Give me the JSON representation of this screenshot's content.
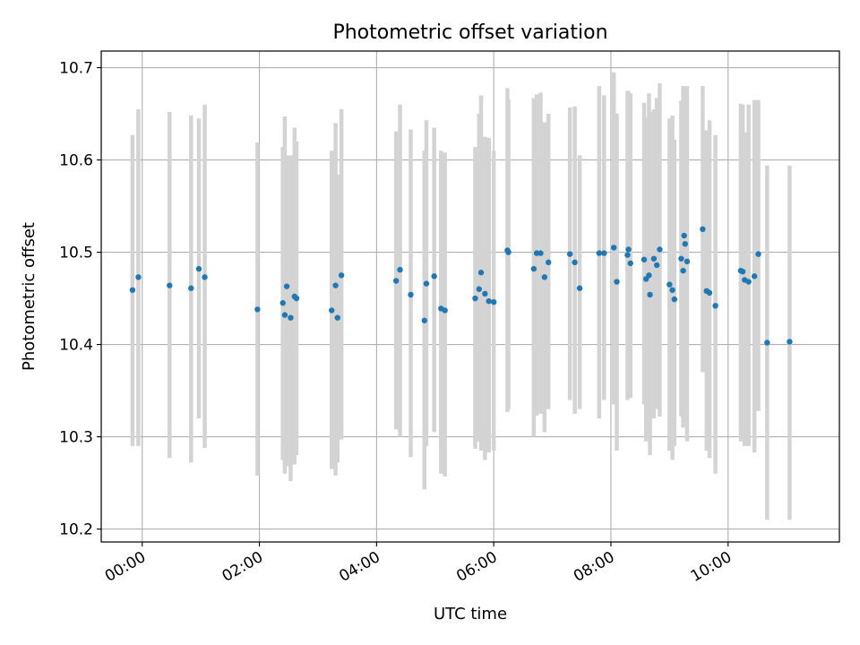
{
  "chart_data": {
    "type": "scatter",
    "title": "Photometric offset variation",
    "xlabel": "UTC time",
    "ylabel": "Photometric offset",
    "x_unit": "UTC time (HH:MM)",
    "xlim": [
      "-00:42",
      "11:54"
    ],
    "ylim": [
      10.186,
      10.718
    ],
    "xticks": [
      "00:00",
      "02:00",
      "04:00",
      "06:00",
      "08:00",
      "10:00"
    ],
    "yticks": [
      10.2,
      10.3,
      10.4,
      10.5,
      10.6,
      10.7
    ],
    "grid": true,
    "errorbar_color": "#d3d3d3",
    "point_color": "#1f77b4",
    "series": [
      {
        "x": [
          "-00:10",
          "-00:04",
          "00:28",
          "00:50",
          "00:58",
          "01:04",
          "01:58",
          "02:24",
          "02:26",
          "02:28",
          "02:32",
          "02:36",
          "02:38",
          "03:14",
          "03:18",
          "03:20",
          "03:24",
          "04:20",
          "04:24",
          "04:35",
          "04:49",
          "04:51",
          "04:59",
          "05:06",
          "05:10",
          "05:41",
          "05:45",
          "05:47",
          "05:51",
          "05:55",
          "06:00",
          "06:14",
          "06:15",
          "06:41",
          "06:44",
          "06:48",
          "06:52",
          "06:56",
          "07:18",
          "07:23",
          "07:28",
          "07:48",
          "07:53",
          "08:03",
          "08:06",
          "08:17",
          "08:18",
          "08:20",
          "08:34",
          "08:36",
          "08:39",
          "08:40",
          "08:44",
          "08:47",
          "08:50",
          "09:00",
          "09:03",
          "09:05",
          "09:12",
          "09:14",
          "09:15",
          "09:16",
          "09:18",
          "09:34",
          "09:38",
          "09:41",
          "09:47",
          "10:13",
          "10:15",
          "10:17",
          "10:21",
          "10:27",
          "10:31",
          "10:40",
          "11:03"
        ],
        "y": [
          10.459,
          10.473,
          10.464,
          10.461,
          10.482,
          10.473,
          10.438,
          10.445,
          10.432,
          10.463,
          10.429,
          10.452,
          10.45,
          10.437,
          10.464,
          10.429,
          10.475,
          10.469,
          10.481,
          10.454,
          10.426,
          10.466,
          10.474,
          10.439,
          10.437,
          10.45,
          10.46,
          10.478,
          10.455,
          10.447,
          10.446,
          10.502,
          10.5,
          10.482,
          10.499,
          10.499,
          10.473,
          10.489,
          10.498,
          10.489,
          10.461,
          10.499,
          10.499,
          10.505,
          10.468,
          10.497,
          10.503,
          10.488,
          10.492,
          10.471,
          10.475,
          10.454,
          10.493,
          10.486,
          10.503,
          10.465,
          10.459,
          10.449,
          10.493,
          10.48,
          10.518,
          10.509,
          10.49,
          10.525,
          10.458,
          10.456,
          10.442,
          10.48,
          10.479,
          10.47,
          10.468,
          10.474,
          10.498,
          10.402,
          10.403
        ],
        "yerr_low": [
          10.29,
          10.29,
          10.277,
          10.272,
          10.32,
          10.288,
          10.258,
          10.275,
          10.26,
          10.268,
          10.252,
          10.27,
          10.28,
          10.265,
          10.258,
          10.272,
          10.297,
          10.308,
          10.3,
          10.278,
          10.243,
          10.29,
          10.305,
          10.26,
          10.257,
          10.287,
          10.295,
          10.285,
          10.275,
          10.283,
          10.285,
          10.327,
          10.33,
          10.3,
          10.323,
          10.325,
          10.305,
          10.33,
          10.34,
          10.325,
          10.33,
          10.32,
          10.34,
          10.335,
          10.285,
          10.34,
          10.346,
          10.342,
          10.335,
          10.295,
          10.305,
          10.28,
          10.32,
          10.33,
          10.322,
          10.285,
          10.275,
          10.29,
          10.322,
          10.31,
          10.33,
          10.36,
          10.295,
          10.37,
          10.285,
          10.277,
          10.26,
          10.295,
          10.305,
          10.29,
          10.29,
          10.283,
          10.328,
          10.21,
          10.21
        ],
        "yerr_high": [
          10.627,
          10.655,
          10.652,
          10.648,
          10.645,
          10.66,
          10.619,
          10.614,
          10.647,
          10.605,
          10.605,
          10.635,
          10.62,
          10.61,
          10.64,
          10.584,
          10.655,
          10.631,
          10.66,
          10.633,
          10.61,
          10.643,
          10.635,
          10.61,
          10.608,
          10.614,
          10.65,
          10.67,
          10.625,
          10.624,
          10.61,
          10.678,
          10.666,
          10.667,
          10.671,
          10.673,
          10.641,
          10.65,
          10.657,
          10.658,
          10.605,
          10.68,
          10.67,
          10.695,
          10.65,
          10.675,
          10.674,
          10.672,
          10.662,
          10.646,
          10.672,
          10.652,
          10.655,
          10.667,
          10.683,
          10.645,
          10.648,
          10.622,
          10.664,
          10.68,
          10.68,
          10.658,
          10.68,
          10.68,
          10.632,
          10.643,
          10.627,
          10.661,
          10.66,
          10.63,
          10.66,
          10.665,
          10.665,
          10.594,
          10.594
        ]
      }
    ]
  }
}
